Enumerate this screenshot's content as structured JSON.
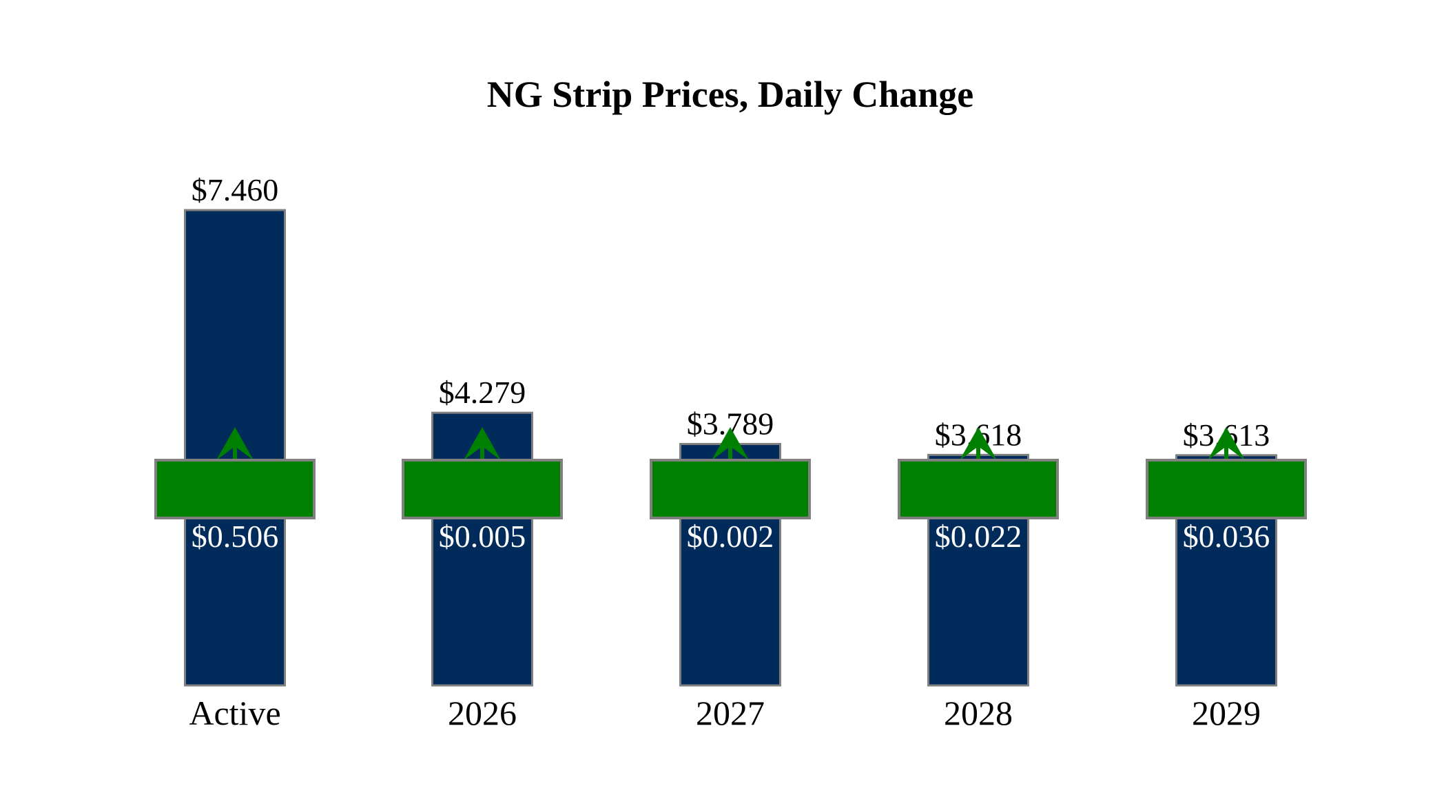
{
  "chart_data": {
    "type": "bar",
    "title": "NG Strip Prices, Daily Change",
    "xlabel": "",
    "ylabel": "",
    "categories": [
      "Active",
      "2026",
      "2027",
      "2028",
      "2029"
    ],
    "values": [
      7.46,
      4.279,
      3.789,
      3.618,
      3.613
    ],
    "value_labels": [
      "$7.460",
      "$4.279",
      "$3.789",
      "$3.618",
      "$3.613"
    ],
    "changes": [
      0.506,
      0.005,
      0.002,
      0.022,
      0.036
    ],
    "change_labels": [
      "$0.506",
      "$0.005",
      "$0.002",
      "$0.022",
      "$0.036"
    ],
    "change_direction": [
      "up",
      "up",
      "up",
      "up",
      "up"
    ],
    "ylim": [
      0,
      7.46
    ],
    "grid": false,
    "colors": {
      "bar": "#002B5B",
      "bar_border": "#808080",
      "change_box": "#008000",
      "change_text": "#FFFFFF",
      "arrow": "#008000"
    }
  }
}
